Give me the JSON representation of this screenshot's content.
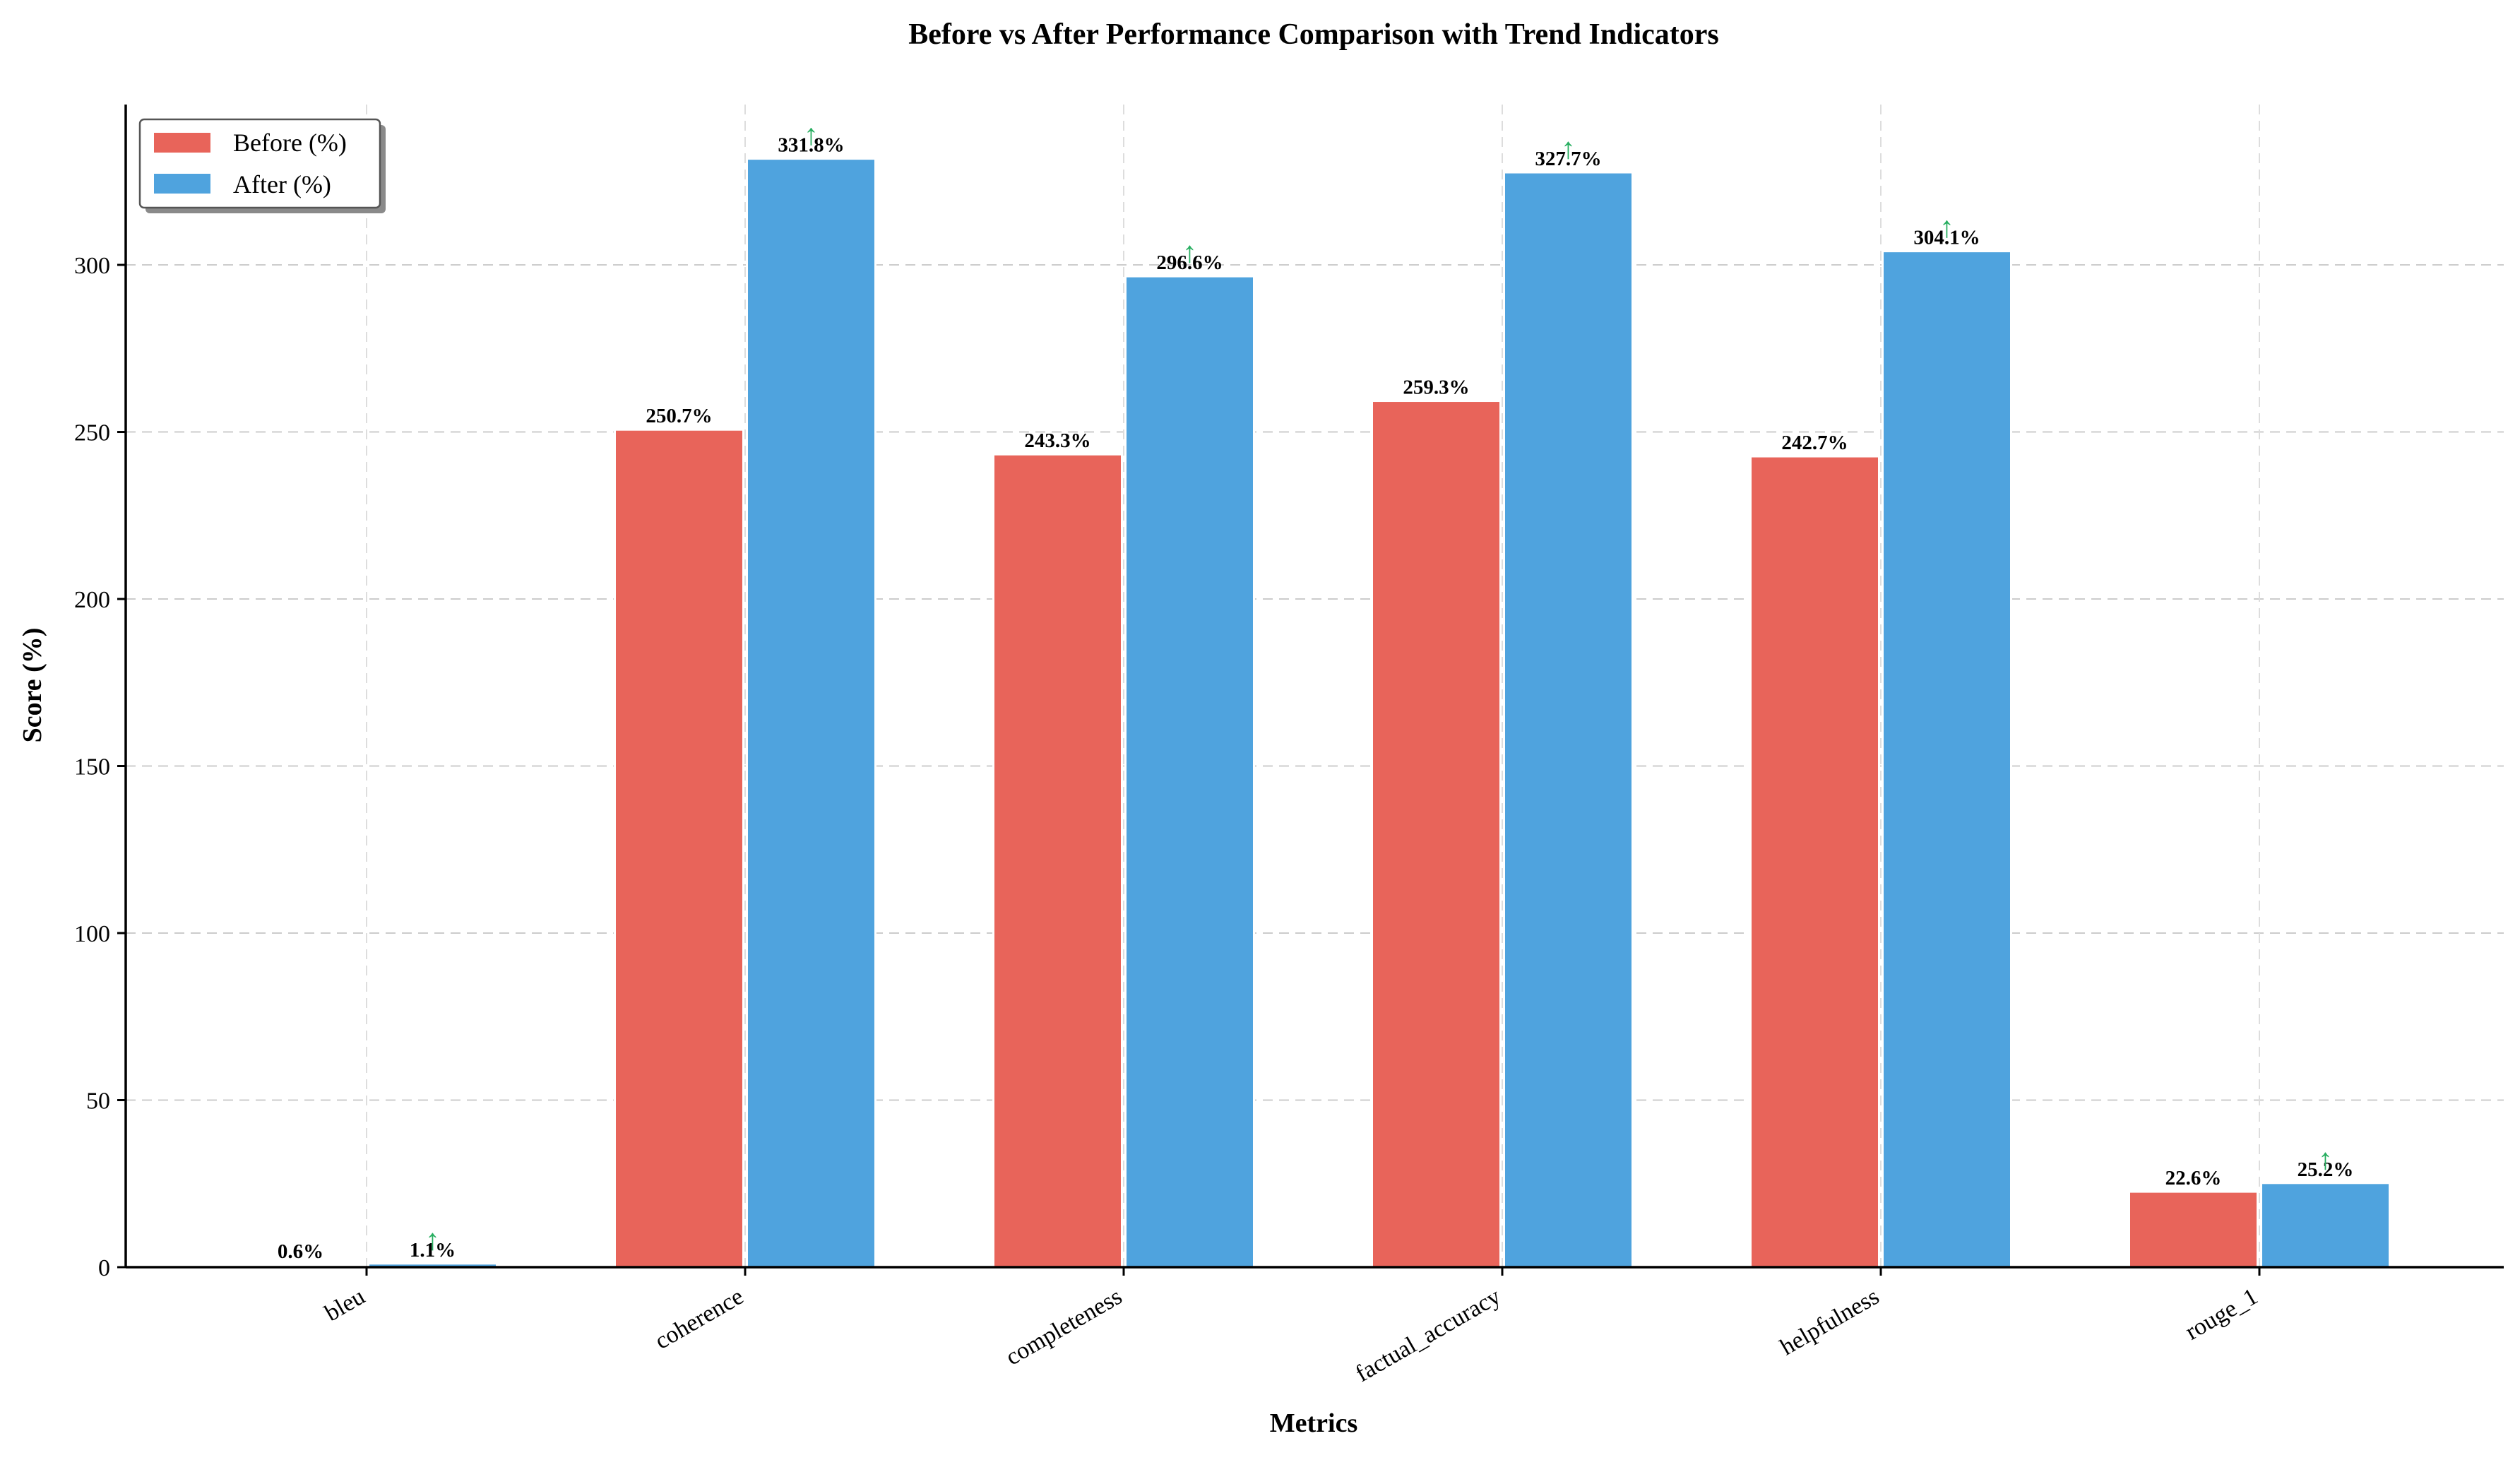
{
  "chart_data": {
    "type": "bar",
    "title": "Before vs After Performance Comparison with Trend Indicators",
    "xlabel": "Metrics",
    "ylabel": "Score (%)",
    "categories": [
      "bleu",
      "coherence",
      "completeness",
      "factual_accuracy",
      "helpfulness",
      "rouge_1"
    ],
    "series": [
      {
        "name": "Before (%)",
        "color": "#e8645a",
        "values": [
          0.6,
          250.7,
          243.3,
          259.3,
          242.7,
          22.6
        ]
      },
      {
        "name": "After (%)",
        "color": "#4fa3de",
        "values": [
          1.1,
          331.8,
          296.6,
          327.7,
          304.1,
          25.2
        ]
      }
    ],
    "data_labels": {
      "before": [
        "0.6%",
        "250.7%",
        "243.3%",
        "259.3%",
        "242.7%",
        "22.6%"
      ],
      "after": [
        "1.1%",
        "331.8%",
        "296.6%",
        "327.7%",
        "304.1%",
        "25.2%"
      ]
    },
    "trend_indicator": {
      "symbol": "↑",
      "color": "#27ae60"
    },
    "ylim": [
      0,
      348
    ],
    "yticks": [
      0,
      50,
      100,
      150,
      200,
      250,
      300
    ],
    "grid": true,
    "legend_position": "top-left"
  }
}
